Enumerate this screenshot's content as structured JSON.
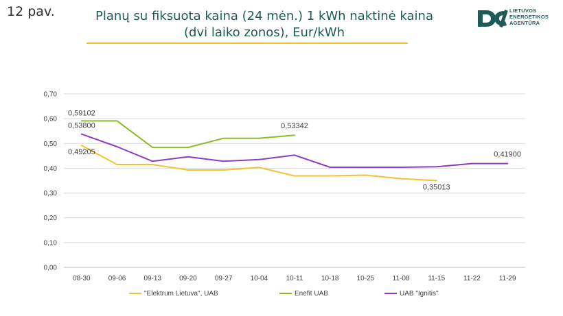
{
  "slide_number": "12 pav.",
  "title_line1": "Planų su fiksuota kaina (24 mėn.) 1 kWh naktinė kaina",
  "title_line2": "(dvi laiko zonos), Eur/kWh",
  "logo": {
    "text_lines": [
      "LIETUVOS",
      "ENERGETIKOS",
      "AGENTŪRA"
    ]
  },
  "colors": {
    "accent": "#f1c232",
    "title": "#1e5a56",
    "grid": "#d9d9d9"
  },
  "chart_data": {
    "type": "line",
    "title": "Planų su fiksuota kaina (24 mėn.) 1 kWh naktinė kaina (dvi laiko zonos), Eur/kWh",
    "categories": [
      "08-30",
      "09-06",
      "09-13",
      "09-20",
      "09-27",
      "10-04",
      "10-11",
      "10-18",
      "10-25",
      "11-08",
      "11-15",
      "11-22",
      "11-29"
    ],
    "ylim": [
      0,
      0.7
    ],
    "yticks": [
      "0,00",
      "0,10",
      "0,20",
      "0,30",
      "0,40",
      "0,50",
      "0,60",
      "0,70"
    ],
    "grid": true,
    "legend": "bottom",
    "series": [
      {
        "name": "\"Elektrum Lietuva\", UAB",
        "color": "#f1c232",
        "values": [
          0.49205,
          0.415,
          0.415,
          0.393,
          0.393,
          0.403,
          0.369,
          0.369,
          0.372,
          0.358,
          0.35013,
          null,
          null
        ]
      },
      {
        "name": "Enefit UAB",
        "color": "#8dbb25",
        "values": [
          0.59102,
          0.59102,
          0.484,
          0.484,
          0.521,
          0.521,
          0.53342,
          null,
          null,
          null,
          null,
          null,
          null
        ]
      },
      {
        "name": "UAB \"Ignitis\"",
        "color": "#8e3bc2",
        "values": [
          0.538,
          0.487,
          0.428,
          0.446,
          0.428,
          0.435,
          0.453,
          0.404,
          0.404,
          0.404,
          0.406,
          0.419,
          0.419
        ]
      }
    ],
    "data_labels": [
      {
        "series": 1,
        "index": 0,
        "text": "0,59102"
      },
      {
        "series": 2,
        "index": 0,
        "text": "0,53800"
      },
      {
        "series": 0,
        "index": 0,
        "text": "0,49205"
      },
      {
        "series": 1,
        "index": 6,
        "text": "0,53342"
      },
      {
        "series": 0,
        "index": 10,
        "text": "0,35013"
      },
      {
        "series": 2,
        "index": 12,
        "text": "0,41900"
      }
    ]
  }
}
